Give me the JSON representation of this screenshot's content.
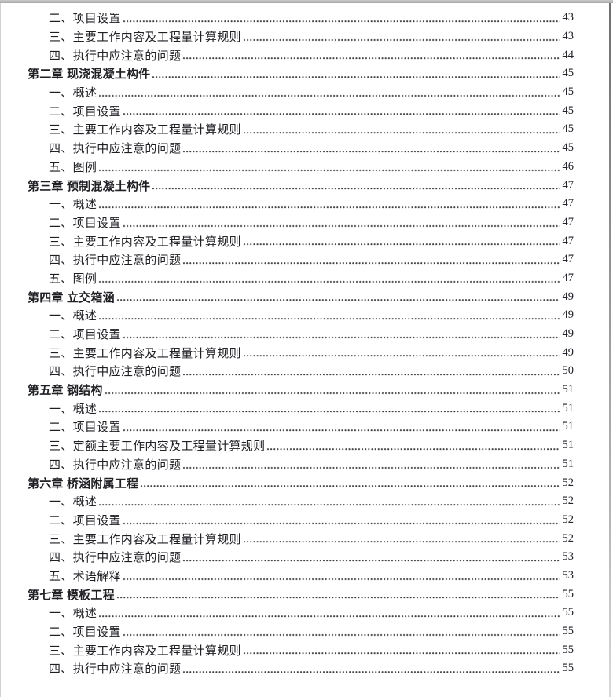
{
  "document": {
    "kind": "table-of-contents-page",
    "colors": {
      "text": "#1f1f24",
      "page_number": "#23232c",
      "leader_dots": "#3f3f3f",
      "top_edge": "#b2b2b2",
      "side_edge": "#8f8f8f"
    },
    "toc": {
      "rows": [
        {
          "type": "item",
          "label": "二、项目设置",
          "page": "43"
        },
        {
          "type": "item",
          "label": "三、主要工作内容及工程量计算规则",
          "page": "43"
        },
        {
          "type": "item",
          "label": "四、执行中应注意的问题",
          "page": "44"
        },
        {
          "type": "chapter",
          "label": "第二章 现浇混凝土构件",
          "page": "45"
        },
        {
          "type": "item",
          "label": "一、概述",
          "page": "45"
        },
        {
          "type": "item",
          "label": "二、项目设置",
          "page": "45"
        },
        {
          "type": "item",
          "label": "三、主要工作内容及工程量计算规则",
          "page": "45"
        },
        {
          "type": "item",
          "label": "四、执行中应注意的问题",
          "page": "45"
        },
        {
          "type": "item",
          "label": "五、图例",
          "page": "46"
        },
        {
          "type": "chapter",
          "label": "第三章 预制混凝土构件",
          "page": "47"
        },
        {
          "type": "item",
          "label": "一、概述",
          "page": "47"
        },
        {
          "type": "item",
          "label": "二、项目设置",
          "page": "47"
        },
        {
          "type": "item",
          "label": "三、主要工作内容及工程量计算规则",
          "page": "47"
        },
        {
          "type": "item",
          "label": "四、执行中应注意的问题",
          "page": "47"
        },
        {
          "type": "item",
          "label": "五、图例",
          "page": "47"
        },
        {
          "type": "chapter",
          "label": "第四章 立交箱涵",
          "page": "49"
        },
        {
          "type": "item",
          "label": "一、概述",
          "page": "49"
        },
        {
          "type": "item",
          "label": "二、项目设置",
          "page": "49"
        },
        {
          "type": "item",
          "label": "三、主要工作内容及工程量计算规则",
          "page": "49"
        },
        {
          "type": "item",
          "label": "四、执行中应注意的问题",
          "page": "50"
        },
        {
          "type": "chapter",
          "label": "第五章 钢结构",
          "page": "51"
        },
        {
          "type": "item",
          "label": "一、概述",
          "page": "51"
        },
        {
          "type": "item",
          "label": "二、项目设置",
          "page": "51"
        },
        {
          "type": "item",
          "label": "三、定额主要工作内容及工程量计算规则",
          "page": "51"
        },
        {
          "type": "item",
          "label": "四、执行中应注意的问题",
          "page": "51"
        },
        {
          "type": "chapter",
          "label": "第六章 桥涵附属工程",
          "page": "52"
        },
        {
          "type": "item",
          "label": "一、概述",
          "page": "52"
        },
        {
          "type": "item",
          "label": "二、项目设置",
          "page": "52"
        },
        {
          "type": "item",
          "label": "三、主要工作内容及工程量计算规则",
          "page": "52"
        },
        {
          "type": "item",
          "label": "四、执行中应注意的问题",
          "page": "53"
        },
        {
          "type": "item",
          "label": "五、术语解释",
          "page": "53"
        },
        {
          "type": "chapter",
          "label": "第七章 模板工程",
          "page": "55"
        },
        {
          "type": "item",
          "label": "一、概述",
          "page": "55"
        },
        {
          "type": "item",
          "label": "二、项目设置",
          "page": "55"
        },
        {
          "type": "item",
          "label": "三、主要工作内容及工程量计算规则",
          "page": "55"
        },
        {
          "type": "item",
          "label": "四、执行中应注意的问题",
          "page": "55"
        }
      ]
    }
  }
}
